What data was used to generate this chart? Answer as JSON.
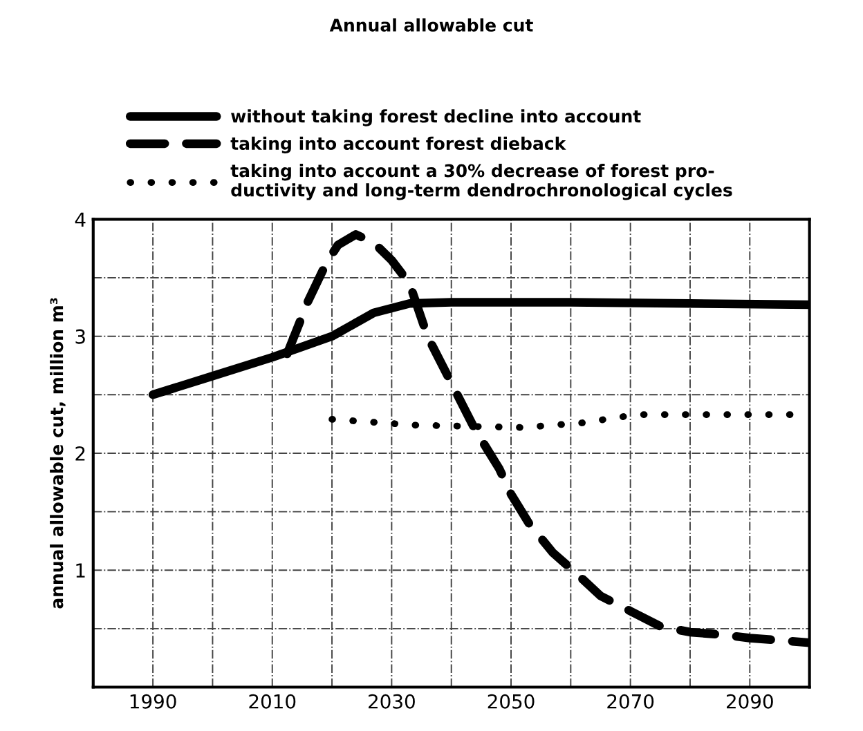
{
  "chart_data": {
    "type": "line",
    "title": "Annual allowable cut",
    "ylabel": "annual allowable cut, million m³",
    "xlim": [
      1980,
      2100
    ],
    "ylim": [
      0,
      4
    ],
    "xticks": [
      1990,
      {
        "value": 2000,
        "label": null
      },
      2010,
      {
        "value": 2020,
        "label": null
      },
      2030,
      {
        "value": 2040,
        "label": null
      },
      2050,
      {
        "value": 2060,
        "label": null
      },
      2070,
      {
        "value": 2080,
        "label": null
      },
      2090
    ],
    "yticks": [
      {
        "value": 0.5,
        "label": null
      },
      1,
      {
        "value": 1.5,
        "label": null
      },
      2,
      {
        "value": 2.5,
        "label": null
      },
      3,
      {
        "value": 3.5,
        "label": null
      },
      4
    ],
    "grid": true,
    "legend": "top",
    "series": [
      {
        "name": "without taking forest decline into account",
        "color": "#000000",
        "line_style": "solid",
        "x": [
          1990,
          2000,
          2010,
          2020,
          2027,
          2033,
          2040,
          2060,
          2080,
          2100
        ],
        "values": [
          2.5,
          2.66,
          2.82,
          3.0,
          3.2,
          3.28,
          3.29,
          3.29,
          3.28,
          3.27
        ]
      },
      {
        "name": "taking into account forest dieback",
        "color": "#000000",
        "line_style": "dashed",
        "x": [
          2012.5,
          2016,
          2019,
          2021,
          2024,
          2027,
          2030,
          2033,
          2036,
          2040,
          2044,
          2048,
          2050,
          2053,
          2057,
          2061,
          2065,
          2070,
          2075,
          2080,
          2085,
          2090,
          2095,
          2100
        ],
        "values": [
          2.85,
          3.3,
          3.62,
          3.78,
          3.87,
          3.8,
          3.65,
          3.45,
          3.0,
          2.6,
          2.2,
          1.87,
          1.65,
          1.4,
          1.15,
          0.97,
          0.78,
          0.65,
          0.52,
          0.47,
          0.45,
          0.42,
          0.4,
          0.38
        ]
      },
      {
        "name": "taking into account a 30% decrease of forest pro-\nductivity and long-term dendrochronological cycles",
        "color": "#000000",
        "line_style": "dotted",
        "x": [
          2020,
          2034,
          2052,
          2062,
          2071,
          2080,
          2098
        ],
        "values": [
          2.29,
          2.24,
          2.22,
          2.26,
          2.33,
          2.33,
          2.33
        ]
      }
    ]
  }
}
